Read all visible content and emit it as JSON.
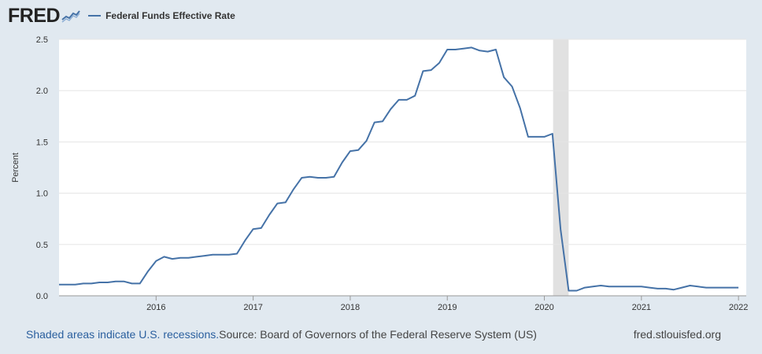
{
  "brand": {
    "logo_text": "FRED"
  },
  "legend": {
    "series_label": "Federal Funds Effective Rate"
  },
  "footer": {
    "recession_note": "Shaded areas indicate U.S. recessions.",
    "source": "Source: Board of Governors of the Federal Reserve System (US)",
    "url": "fred.stlouisfed.org"
  },
  "colors": {
    "line": "#4572a7",
    "background": "#e1e9f0",
    "plot_bg": "#ffffff",
    "recession": "#e1e1e1",
    "grid": "#e5e5e5"
  },
  "chart_data": {
    "type": "line",
    "title": "Federal Funds Effective Rate",
    "xlabel": "",
    "ylabel": "Percent",
    "xlim": [
      2015.0,
      2022.08
    ],
    "ylim": [
      0,
      2.5
    ],
    "yticks": [
      0.0,
      0.5,
      1.0,
      1.5,
      2.0,
      2.5
    ],
    "ytick_labels": [
      "0.0",
      "0.5",
      "1.0",
      "1.5",
      "2.0",
      "2.5"
    ],
    "xticks": [
      2016,
      2017,
      2018,
      2019,
      2020,
      2021,
      2022
    ],
    "xtick_labels": [
      "2016",
      "2017",
      "2018",
      "2019",
      "2020",
      "2021",
      "2022"
    ],
    "recessions": [
      {
        "start": 2020.09,
        "end": 2020.25
      }
    ],
    "series": [
      {
        "name": "Federal Funds Effective Rate",
        "x": [
          2015.0,
          2015.083,
          2015.167,
          2015.25,
          2015.333,
          2015.417,
          2015.5,
          2015.583,
          2015.667,
          2015.75,
          2015.833,
          2015.917,
          2016.0,
          2016.083,
          2016.167,
          2016.25,
          2016.333,
          2016.417,
          2016.5,
          2016.583,
          2016.667,
          2016.75,
          2016.833,
          2016.917,
          2017.0,
          2017.083,
          2017.167,
          2017.25,
          2017.333,
          2017.417,
          2017.5,
          2017.583,
          2017.667,
          2017.75,
          2017.833,
          2017.917,
          2018.0,
          2018.083,
          2018.167,
          2018.25,
          2018.333,
          2018.417,
          2018.5,
          2018.583,
          2018.667,
          2018.75,
          2018.833,
          2018.917,
          2019.0,
          2019.083,
          2019.167,
          2019.25,
          2019.333,
          2019.417,
          2019.5,
          2019.583,
          2019.667,
          2019.75,
          2019.833,
          2019.917,
          2020.0,
          2020.083,
          2020.167,
          2020.25,
          2020.333,
          2020.417,
          2020.5,
          2020.583,
          2020.667,
          2020.75,
          2020.833,
          2020.917,
          2021.0,
          2021.083,
          2021.167,
          2021.25,
          2021.333,
          2021.417,
          2021.5,
          2021.583,
          2021.667,
          2021.75,
          2021.833,
          2021.917,
          2022.0
        ],
        "values": [
          0.11,
          0.11,
          0.11,
          0.12,
          0.12,
          0.13,
          0.13,
          0.14,
          0.14,
          0.12,
          0.12,
          0.24,
          0.34,
          0.38,
          0.36,
          0.37,
          0.37,
          0.38,
          0.39,
          0.4,
          0.4,
          0.4,
          0.41,
          0.54,
          0.65,
          0.66,
          0.79,
          0.9,
          0.91,
          1.04,
          1.15,
          1.16,
          1.15,
          1.15,
          1.16,
          1.3,
          1.41,
          1.42,
          1.51,
          1.69,
          1.7,
          1.82,
          1.91,
          1.91,
          1.95,
          2.19,
          2.2,
          2.27,
          2.4,
          2.4,
          2.41,
          2.42,
          2.39,
          2.38,
          2.4,
          2.13,
          2.04,
          1.83,
          1.55,
          1.55,
          1.55,
          1.58,
          0.65,
          0.05,
          0.05,
          0.08,
          0.09,
          0.1,
          0.09,
          0.09,
          0.09,
          0.09,
          0.09,
          0.08,
          0.07,
          0.07,
          0.06,
          0.08,
          0.1,
          0.09,
          0.08,
          0.08,
          0.08,
          0.08,
          0.08
        ]
      }
    ]
  }
}
